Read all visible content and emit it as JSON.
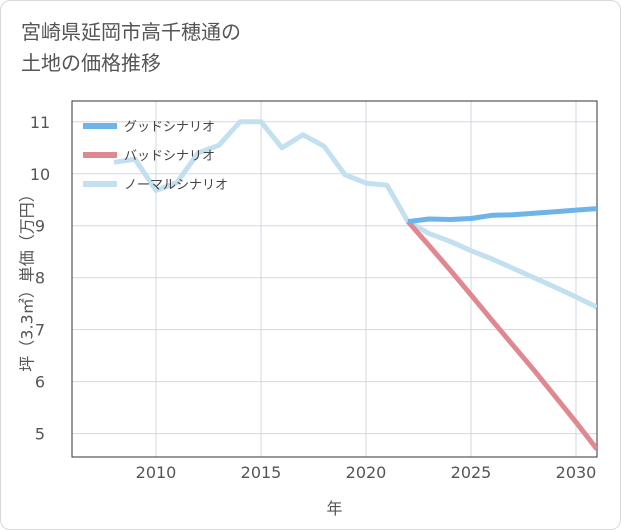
{
  "title_lines": [
    "宮崎県延岡市高千穂通の",
    "土地の価格推移"
  ],
  "chart_data": {
    "type": "line",
    "title": "宮崎県延岡市高千穂通の土地の価格推移",
    "xlabel": "年",
    "ylabel": "坪（3.3㎡）単価（万円）",
    "xlim": [
      2006,
      2031
    ],
    "ylim": [
      4.55,
      11.4
    ],
    "x_ticks": [
      2010,
      2015,
      2020,
      2025,
      2030
    ],
    "y_ticks": [
      5,
      6,
      7,
      8,
      9,
      10,
      11
    ],
    "grid": true,
    "legend_position": "top-left",
    "series": [
      {
        "name": "グッドシナリオ",
        "color": "#6cb4ea",
        "x": [
          2022,
          2023,
          2024,
          2025,
          2026,
          2027,
          2028,
          2029,
          2030,
          2031
        ],
        "y": [
          9.08,
          9.13,
          9.12,
          9.14,
          9.2,
          9.21,
          9.24,
          9.27,
          9.3,
          9.33
        ]
      },
      {
        "name": "バッドシナリオ",
        "color": "#e0888f",
        "x": [
          2022,
          2023,
          2024,
          2025,
          2026,
          2027,
          2028,
          2029,
          2030,
          2031
        ],
        "y": [
          9.08,
          8.62,
          8.15,
          7.67,
          7.18,
          6.7,
          6.22,
          5.72,
          5.22,
          4.7
        ]
      },
      {
        "name": "ノーマルシナリオ",
        "color": "#c3e0f0",
        "x": [
          2008,
          2009,
          2010,
          2011,
          2012,
          2013,
          2014,
          2015,
          2016,
          2017,
          2018,
          2019,
          2020,
          2021,
          2022,
          2023,
          2024,
          2025,
          2026,
          2027,
          2028,
          2029,
          2030,
          2031
        ],
        "y": [
          10.22,
          10.28,
          9.68,
          9.83,
          10.4,
          10.55,
          11.0,
          11.0,
          10.5,
          10.75,
          10.53,
          9.98,
          9.82,
          9.78,
          9.08,
          8.85,
          8.7,
          8.52,
          8.36,
          8.18,
          8.0,
          7.82,
          7.63,
          7.43
        ]
      }
    ]
  }
}
